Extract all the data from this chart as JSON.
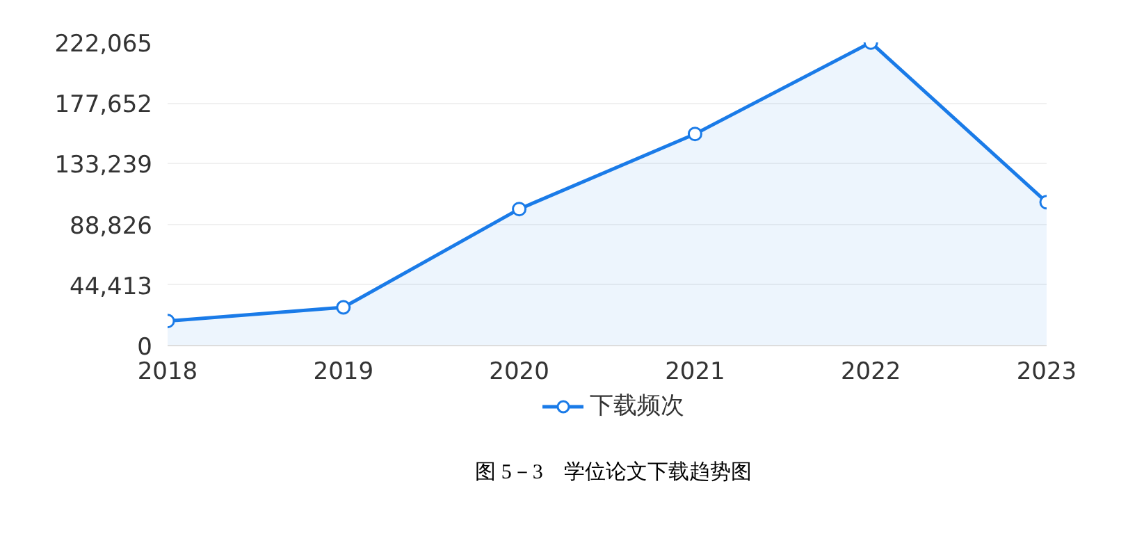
{
  "chart_data": {
    "type": "area",
    "categories": [
      "2018",
      "2019",
      "2020",
      "2021",
      "2022",
      "2023"
    ],
    "series": [
      {
        "name": "下载频次",
        "color": "#1a7be8",
        "values": [
          18000,
          28000,
          100000,
          155000,
          222000,
          105000
        ]
      }
    ],
    "ylim": [
      0,
      222065
    ],
    "yticks": [
      0,
      {
        "value": 44413,
        "label": "44,413"
      },
      {
        "value": 88826,
        "label": "88,826"
      },
      {
        "value": 133239,
        "label": "133,239"
      },
      {
        "value": 177652,
        "label": "177,652"
      },
      {
        "value": 222065,
        "label": "222,065"
      }
    ],
    "grid": "y",
    "legend": "bottom",
    "marker": "circle",
    "line_style": "solid",
    "annotations": [
      "图 5－3　学位论文下载趋势图"
    ]
  }
}
